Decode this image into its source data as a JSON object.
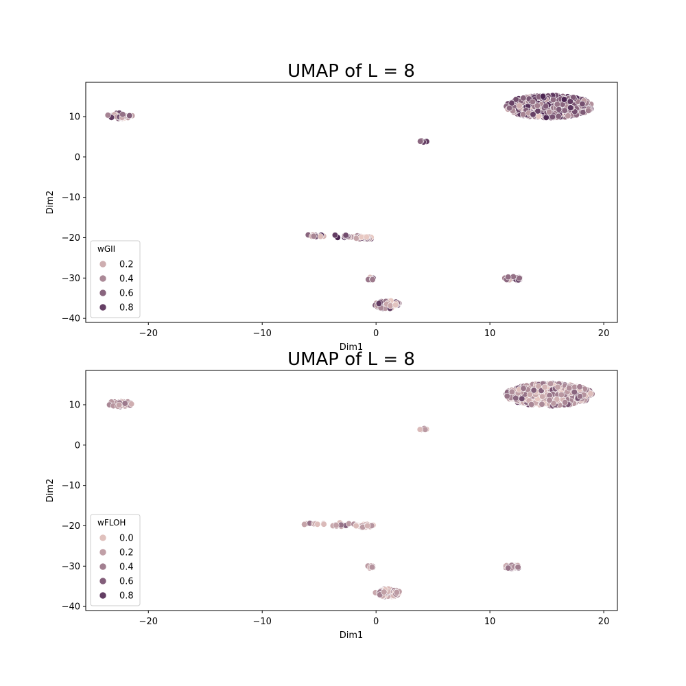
{
  "chart_data": [
    {
      "type": "scatter",
      "title": "UMAP of L = 8",
      "xlabel": "Dim1",
      "ylabel": "Dim2",
      "xlim": [
        -25.5,
        21.2
      ],
      "ylim": [
        -41,
        18.5
      ],
      "xticks": [
        -20,
        -10,
        0,
        10,
        20
      ],
      "yticks": [
        -40,
        -30,
        -20,
        -10,
        0,
        10
      ],
      "xtick_labels": [
        "−20",
        "−10",
        "0",
        "10",
        "20"
      ],
      "ytick_labels": [
        "−40",
        "−30",
        "−20",
        "−10",
        "0",
        "10"
      ],
      "grid": false,
      "legend": {
        "title": "wGII",
        "position": "lower-left",
        "entries": [
          {
            "label": "0.2",
            "value": 0.2
          },
          {
            "label": "0.4",
            "value": 0.4
          },
          {
            "label": "0.6",
            "value": 0.6
          },
          {
            "label": "0.8",
            "value": 0.8
          }
        ]
      },
      "color_scale": {
        "min": 0.05,
        "max": 0.95,
        "from": "#e8c9c3",
        "to": "#4c2552"
      },
      "clusters": [
        {
          "cx": 15.2,
          "cy": 12.5,
          "rx": 3.8,
          "ry": 2.8,
          "n": 700,
          "mean": 0.6,
          "spread": 0.25
        },
        {
          "cx": -22.5,
          "cy": 10.2,
          "rx": 1.1,
          "ry": 0.7,
          "n": 40,
          "mean": 0.5,
          "spread": 0.25
        },
        {
          "cx": 4.2,
          "cy": 3.9,
          "rx": 0.35,
          "ry": 0.3,
          "n": 6,
          "mean": 0.6,
          "spread": 0.2
        },
        {
          "cx": -5.5,
          "cy": -19.5,
          "rx": 1.1,
          "ry": 0.25,
          "n": 12,
          "mean": 0.4,
          "spread": 0.3
        },
        {
          "cx": -2.8,
          "cy": -19.7,
          "rx": 1.3,
          "ry": 0.5,
          "n": 14,
          "mean": 0.5,
          "spread": 0.3
        },
        {
          "cx": -1.0,
          "cy": -20.0,
          "rx": 0.8,
          "ry": 0.45,
          "n": 26,
          "mean": 0.35,
          "spread": 0.25
        },
        {
          "cx": -0.5,
          "cy": -30.1,
          "rx": 0.4,
          "ry": 0.4,
          "n": 8,
          "mean": 0.5,
          "spread": 0.25
        },
        {
          "cx": 12.0,
          "cy": -30.1,
          "rx": 0.8,
          "ry": 0.5,
          "n": 32,
          "mean": 0.6,
          "spread": 0.2
        },
        {
          "cx": 1.0,
          "cy": -36.6,
          "rx": 1.1,
          "ry": 1.0,
          "n": 75,
          "mean": 0.5,
          "spread": 0.3
        }
      ]
    },
    {
      "type": "scatter",
      "title": "UMAP of L = 8",
      "xlabel": "Dim1",
      "ylabel": "Dim2",
      "xlim": [
        -25.5,
        21.2
      ],
      "ylim": [
        -41,
        18.5
      ],
      "xticks": [
        -20,
        -10,
        0,
        10,
        20
      ],
      "yticks": [
        -40,
        -30,
        -20,
        -10,
        0,
        10
      ],
      "xtick_labels": [
        "−20",
        "−10",
        "0",
        "10",
        "20"
      ],
      "ytick_labels": [
        "−40",
        "−30",
        "−20",
        "−10",
        "0",
        "10"
      ],
      "grid": false,
      "legend": {
        "title": "wFLOH",
        "position": "lower-left",
        "entries": [
          {
            "label": "0.0",
            "value": 0.0
          },
          {
            "label": "0.2",
            "value": 0.2
          },
          {
            "label": "0.4",
            "value": 0.4
          },
          {
            "label": "0.6",
            "value": 0.6
          },
          {
            "label": "0.8",
            "value": 0.8
          }
        ]
      },
      "color_scale": {
        "min": -0.05,
        "max": 0.95,
        "from": "#e8c9c3",
        "to": "#4c2552"
      },
      "clusters": [
        {
          "cx": 15.2,
          "cy": 12.5,
          "rx": 3.8,
          "ry": 2.8,
          "n": 700,
          "mean": 0.3,
          "spread": 0.22
        },
        {
          "cx": -22.5,
          "cy": 10.2,
          "rx": 1.1,
          "ry": 0.7,
          "n": 40,
          "mean": 0.3,
          "spread": 0.2
        },
        {
          "cx": 4.2,
          "cy": 3.9,
          "rx": 0.35,
          "ry": 0.3,
          "n": 6,
          "mean": 0.15,
          "spread": 0.1
        },
        {
          "cx": -5.5,
          "cy": -19.5,
          "rx": 1.1,
          "ry": 0.25,
          "n": 12,
          "mean": 0.15,
          "spread": 0.12
        },
        {
          "cx": -2.8,
          "cy": -19.7,
          "rx": 1.3,
          "ry": 0.5,
          "n": 14,
          "mean": 0.25,
          "spread": 0.15
        },
        {
          "cx": -1.0,
          "cy": -20.0,
          "rx": 0.8,
          "ry": 0.45,
          "n": 26,
          "mean": 0.1,
          "spread": 0.1
        },
        {
          "cx": -0.5,
          "cy": -30.1,
          "rx": 0.4,
          "ry": 0.4,
          "n": 8,
          "mean": 0.2,
          "spread": 0.15
        },
        {
          "cx": 12.0,
          "cy": -30.1,
          "rx": 0.8,
          "ry": 0.5,
          "n": 32,
          "mean": 0.25,
          "spread": 0.15
        },
        {
          "cx": 1.0,
          "cy": -36.6,
          "rx": 1.1,
          "ry": 1.0,
          "n": 75,
          "mean": 0.2,
          "spread": 0.15
        }
      ]
    }
  ]
}
